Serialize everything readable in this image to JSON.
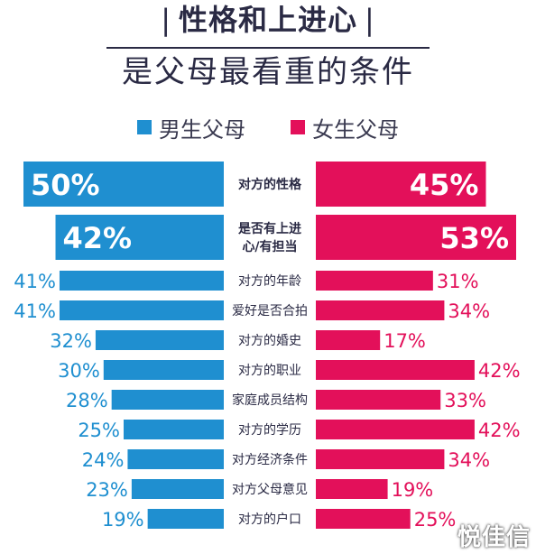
{
  "header": {
    "title_line1": "性格和上进心",
    "title_divider": "|",
    "title_line2": "是父母最看重的条件"
  },
  "colors": {
    "male": "#1f8fd0",
    "female": "#e3105a",
    "text": "#2a2a44"
  },
  "chart_data": {
    "type": "bar",
    "orientation": "horizontal-diverging",
    "series": [
      {
        "name": "男生父母",
        "values": [
          50,
          42,
          41,
          41,
          32,
          30,
          28,
          25,
          24,
          23,
          19
        ]
      },
      {
        "name": "女生父母",
        "values": [
          45,
          53,
          31,
          34,
          17,
          42,
          33,
          42,
          34,
          19,
          25
        ]
      }
    ],
    "categories": [
      "对方的性格",
      "是否有上进心/有担当",
      "对方的年龄",
      "爱好是否合拍",
      "对方的婚史",
      "对方的职业",
      "家庭成员结构",
      "对方的学历",
      "对方经济条件",
      "对方父母意见",
      "对方的户口"
    ],
    "category_lines": [
      [
        "对方的性格"
      ],
      [
        "是否有上进",
        "心/有担当"
      ],
      [
        "对方的年龄"
      ],
      [
        "爱好是否合拍"
      ],
      [
        "对方的婚史"
      ],
      [
        "对方的职业"
      ],
      [
        "家庭成员结构"
      ],
      [
        "对方的学历"
      ],
      [
        "对方经济条件"
      ],
      [
        "对方父母意见"
      ],
      [
        "对方的户口"
      ]
    ],
    "value_labels": {
      "male": [
        "50%",
        "42%",
        "41%",
        "41%",
        "32%",
        "30%",
        "28%",
        "25%",
        "24%",
        "23%",
        "19%"
      ],
      "female": [
        "45%",
        "53%",
        "31%",
        "34%",
        "17%",
        "42%",
        "33%",
        "42%",
        "34%",
        "19%",
        "25%"
      ]
    },
    "legend_position": "top",
    "grid": false
  },
  "watermark": "悦佳信"
}
